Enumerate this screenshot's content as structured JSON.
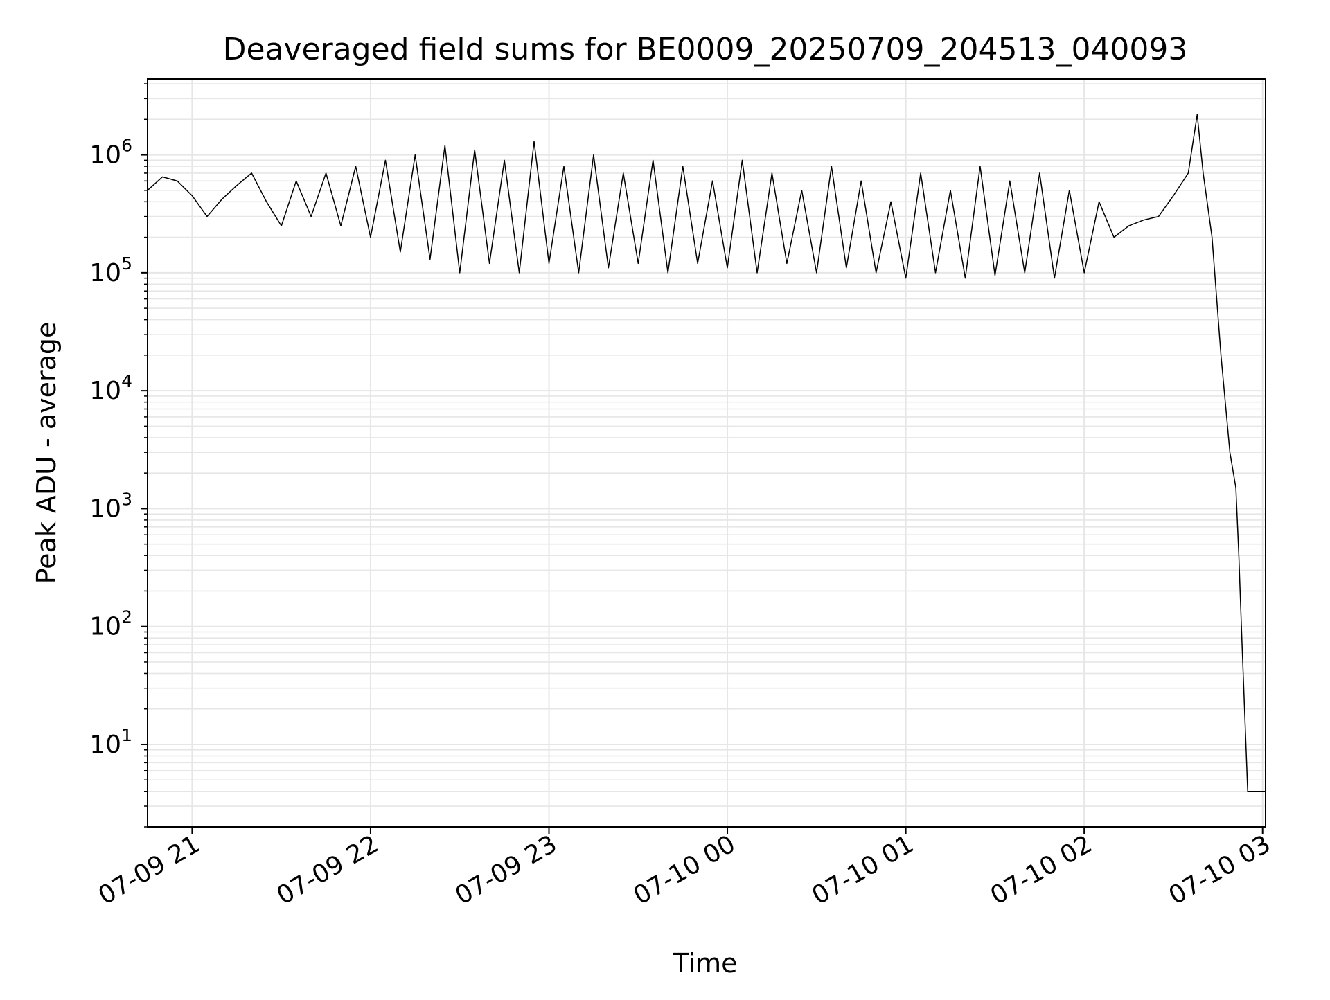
{
  "chart_data": {
    "type": "line",
    "title": "Deaveraged field sums for BE0009_20250709_204513_040093",
    "xlabel": "Time",
    "ylabel": "Peak ADU - average",
    "x_type": "datetime",
    "yscale": "log",
    "xlim": [
      "2025-07-09T20:45:00",
      "2025-07-10T03:01:00"
    ],
    "ylim": [
      2,
      4400000
    ],
    "grid": true,
    "legend": "none",
    "x_ticks": [
      {
        "value": "2025-07-09T21:00:00",
        "label": "07-09 21"
      },
      {
        "value": "2025-07-09T22:00:00",
        "label": "07-09 22"
      },
      {
        "value": "2025-07-09T23:00:00",
        "label": "07-09 23"
      },
      {
        "value": "2025-07-10T00:00:00",
        "label": "07-10 00"
      },
      {
        "value": "2025-07-10T01:00:00",
        "label": "07-10 01"
      },
      {
        "value": "2025-07-10T02:00:00",
        "label": "07-10 02"
      },
      {
        "value": "2025-07-10T03:00:00",
        "label": "07-10 03"
      }
    ],
    "y_ticks": [
      {
        "value": 10,
        "base": "10",
        "exp": "1"
      },
      {
        "value": 100,
        "base": "10",
        "exp": "2"
      },
      {
        "value": 1000,
        "base": "10",
        "exp": "3"
      },
      {
        "value": 10000,
        "base": "10",
        "exp": "4"
      },
      {
        "value": 100000,
        "base": "10",
        "exp": "5"
      },
      {
        "value": 1000000,
        "base": "10",
        "exp": "6"
      }
    ],
    "line_color": "#000000",
    "grid_color": "#e6e6e6",
    "series": [
      {
        "x": [
          "2025-07-09T20:45:00",
          "2025-07-09T20:50:00",
          "2025-07-09T20:55:00",
          "2025-07-09T21:00:00",
          "2025-07-09T21:05:00",
          "2025-07-09T21:10:00",
          "2025-07-09T21:15:00",
          "2025-07-09T21:20:00",
          "2025-07-09T21:25:00",
          "2025-07-09T21:30:00",
          "2025-07-09T21:35:00",
          "2025-07-09T21:40:00",
          "2025-07-09T21:45:00",
          "2025-07-09T21:50:00",
          "2025-07-09T21:55:00",
          "2025-07-09T22:00:00",
          "2025-07-09T22:05:00",
          "2025-07-09T22:10:00",
          "2025-07-09T22:15:00",
          "2025-07-09T22:20:00",
          "2025-07-09T22:25:00",
          "2025-07-09T22:30:00",
          "2025-07-09T22:35:00",
          "2025-07-09T22:40:00",
          "2025-07-09T22:45:00",
          "2025-07-09T22:50:00",
          "2025-07-09T22:55:00",
          "2025-07-09T23:00:00",
          "2025-07-09T23:05:00",
          "2025-07-09T23:10:00",
          "2025-07-09T23:15:00",
          "2025-07-09T23:20:00",
          "2025-07-09T23:25:00",
          "2025-07-09T23:30:00",
          "2025-07-09T23:35:00",
          "2025-07-09T23:40:00",
          "2025-07-09T23:45:00",
          "2025-07-09T23:50:00",
          "2025-07-09T23:55:00",
          "2025-07-10T00:00:00",
          "2025-07-10T00:05:00",
          "2025-07-10T00:10:00",
          "2025-07-10T00:15:00",
          "2025-07-10T00:20:00",
          "2025-07-10T00:25:00",
          "2025-07-10T00:30:00",
          "2025-07-10T00:35:00",
          "2025-07-10T00:40:00",
          "2025-07-10T00:45:00",
          "2025-07-10T00:50:00",
          "2025-07-10T00:55:00",
          "2025-07-10T01:00:00",
          "2025-07-10T01:05:00",
          "2025-07-10T01:10:00",
          "2025-07-10T01:15:00",
          "2025-07-10T01:20:00",
          "2025-07-10T01:25:00",
          "2025-07-10T01:30:00",
          "2025-07-10T01:35:00",
          "2025-07-10T01:40:00",
          "2025-07-10T01:45:00",
          "2025-07-10T01:50:00",
          "2025-07-10T01:55:00",
          "2025-07-10T02:00:00",
          "2025-07-10T02:05:00",
          "2025-07-10T02:10:00",
          "2025-07-10T02:15:00",
          "2025-07-10T02:20:00",
          "2025-07-10T02:25:00",
          "2025-07-10T02:30:00",
          "2025-07-10T02:35:00",
          "2025-07-10T02:38:00",
          "2025-07-10T02:40:00",
          "2025-07-10T02:43:00",
          "2025-07-10T02:46:00",
          "2025-07-10T02:49:00",
          "2025-07-10T02:51:00",
          "2025-07-10T02:52:00",
          "2025-07-10T02:53:00",
          "2025-07-10T02:55:00",
          "2025-07-10T02:58:00",
          "2025-07-10T03:01:00"
        ],
        "y": [
          500000,
          650000,
          600000,
          450000,
          300000,
          420000,
          550000,
          700000,
          400000,
          250000,
          600000,
          300000,
          700000,
          250000,
          800000,
          200000,
          900000,
          150000,
          1000000,
          130000,
          1200000,
          100000,
          1100000,
          120000,
          900000,
          100000,
          1300000,
          120000,
          800000,
          100000,
          1000000,
          110000,
          700000,
          120000,
          900000,
          100000,
          800000,
          120000,
          600000,
          110000,
          900000,
          100000,
          700000,
          120000,
          500000,
          100000,
          800000,
          110000,
          600000,
          100000,
          400000,
          90000,
          700000,
          100000,
          500000,
          90000,
          800000,
          95000,
          600000,
          100000,
          700000,
          90000,
          500000,
          100000,
          400000,
          200000,
          250000,
          280000,
          300000,
          450000,
          700000,
          2200000,
          700000,
          200000,
          20000,
          3000,
          1500,
          400,
          80,
          4,
          4,
          4
        ]
      }
    ]
  }
}
